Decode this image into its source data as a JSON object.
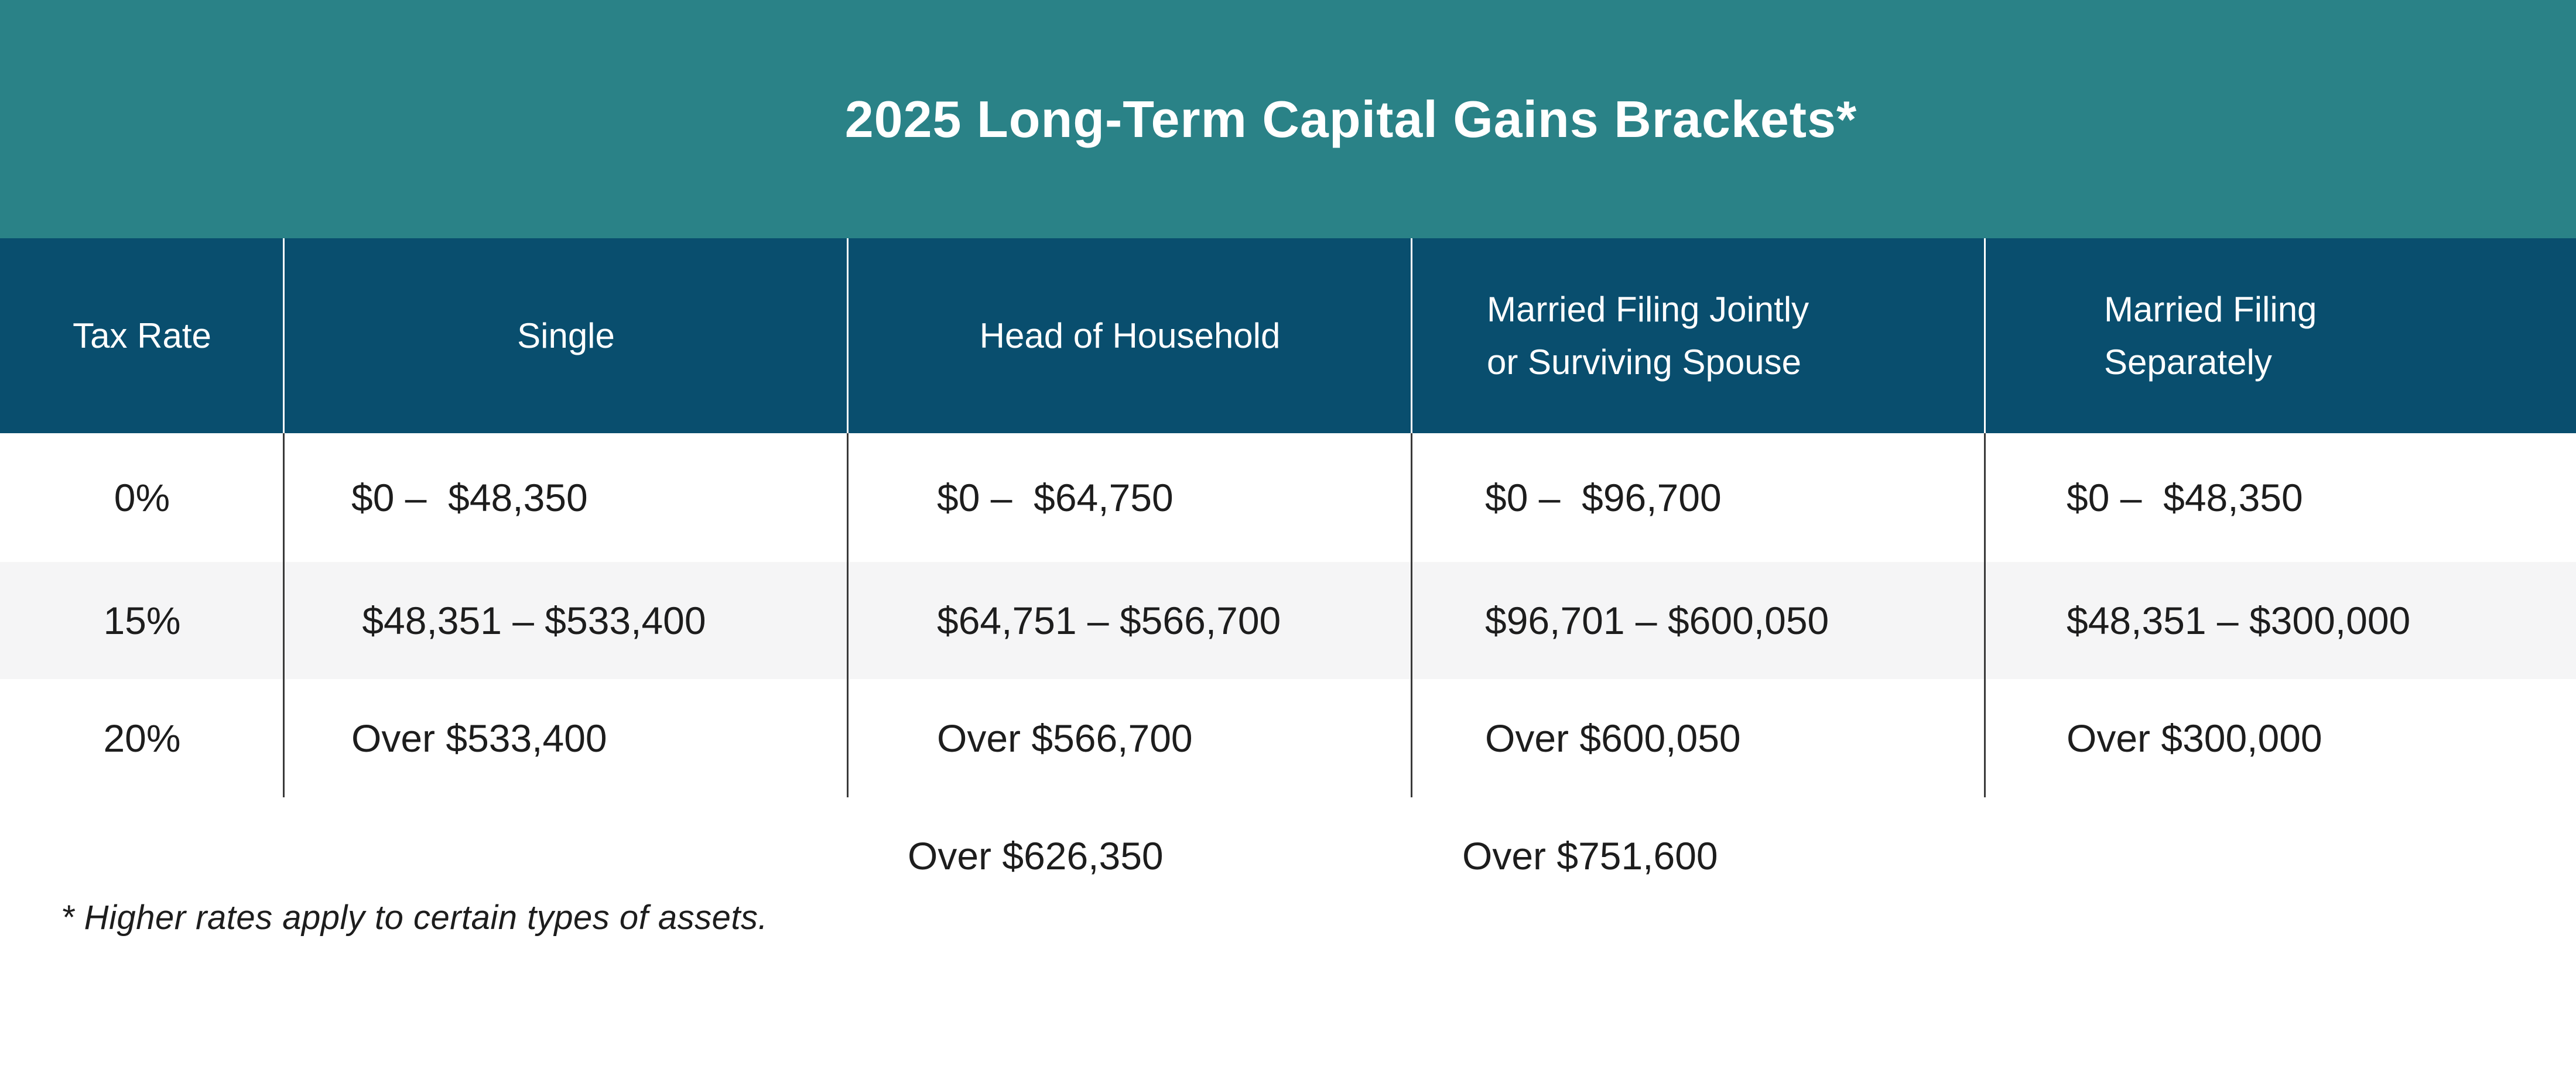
{
  "title": "2025 Long-Term Capital Gains Brackets*",
  "footnote": "* Higher rates apply to certain types of assets.",
  "table": {
    "columns": [
      {
        "id": "tax-rate",
        "lines": [
          "Tax Rate"
        ]
      },
      {
        "id": "single",
        "lines": [
          "Single"
        ]
      },
      {
        "id": "head-of-household",
        "lines": [
          "Head of Household"
        ]
      },
      {
        "id": "married-filing-jointly",
        "lines": [
          "Married Filing Jointly",
          "or Surviving Spouse"
        ]
      },
      {
        "id": "married-filing-separately",
        "lines": [
          "Married Filing",
          "Separately"
        ]
      }
    ],
    "rows": [
      {
        "rate": "0%",
        "cells": [
          "$0 –  $48,350",
          "$0 –  $64,750",
          "$0 –  $96,700",
          "$0 –  $48,350"
        ]
      },
      {
        "rate": "15%",
        "cells": [
          " $48,351 – $533,400",
          "$64,751 – $566,700",
          "$96,701 – $600,050",
          "$48,351 – $300,000"
        ]
      },
      {
        "rate": "20%",
        "cells": [
          "Over $533,400",
          "Over $566,700",
          "Over $600,050",
          "Over $300,000"
        ]
      }
    ],
    "overflow_values": {
      "head_of_household": "Over $626,350",
      "married_filing_jointly": "Over $751,600"
    }
  },
  "colors": {
    "title_band": "#2A8287",
    "header_row": "#094E6E",
    "alt_row": "#F5F5F6",
    "divider_line": "#3A3A3A",
    "header_text": "#FFFFFF",
    "body_text": "#1D1D1D"
  },
  "chart_data": {
    "type": "table",
    "title": "2025 Long-Term Capital Gains Brackets*",
    "columns": [
      "Tax Rate",
      "Single",
      "Head of Household",
      "Married Filing Jointly or Surviving Spouse",
      "Married Filing Separately"
    ],
    "rows": [
      [
        "0%",
        "$0 – $48,350",
        "$0 – $64,750",
        "$0 – $96,700",
        "$0 – $48,350"
      ],
      [
        "15%",
        "$48,351 – $533,400",
        "$64,751 – $566,700",
        "$96,701 – $600,050",
        "$48,351 – $300,000"
      ],
      [
        "20%",
        "Over $533,400",
        "Over $566,700",
        "Over $600,050",
        "Over $300,000"
      ]
    ],
    "extra_values_below_table": {
      "head_of_household": "Over $626,350",
      "married_filing_jointly_or_surviving_spouse": "Over $751,600"
    },
    "footnote": "* Higher rates apply to certain types of assets.",
    "legend_position": "none",
    "grid": "column-dividers-only"
  }
}
